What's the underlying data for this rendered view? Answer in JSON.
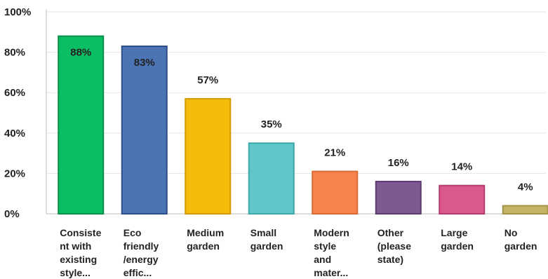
{
  "chart_data": {
    "type": "bar",
    "title": "",
    "xlabel": "",
    "ylabel": "",
    "ylim": [
      0,
      100
    ],
    "y_ticks": [
      "0%",
      "20%",
      "40%",
      "60%",
      "80%",
      "100%"
    ],
    "grid": true,
    "categories": [
      [
        "Consiste",
        "nt with",
        "existing",
        "style..."
      ],
      [
        "Eco",
        "friendly",
        "/energy",
        "effic..."
      ],
      [
        "Medium",
        "garden"
      ],
      [
        "Small",
        "garden"
      ],
      [
        "Modern",
        "style",
        "and",
        "mater..."
      ],
      [
        "Other",
        "(please",
        "state)"
      ],
      [
        "Large",
        "garden"
      ],
      [
        "No",
        "garden"
      ]
    ],
    "values": [
      88,
      83,
      57,
      35,
      21,
      16,
      14,
      4
    ],
    "value_labels": [
      "88%",
      "83%",
      "57%",
      "35%",
      "21%",
      "16%",
      "14%",
      "4%"
    ],
    "colors": [
      "#0bbd63",
      "#4a74b4",
      "#f5bb0a",
      "#5fc7c9",
      "#f5834b",
      "#7e5a92",
      "#d9588e",
      "#c3b463"
    ],
    "edge_colors": [
      "#0a8f4b",
      "#2c4f8c",
      "#d19b00",
      "#3ea7a9",
      "#d96a33",
      "#5c3c70",
      "#b53a6e",
      "#a3944a"
    ]
  }
}
